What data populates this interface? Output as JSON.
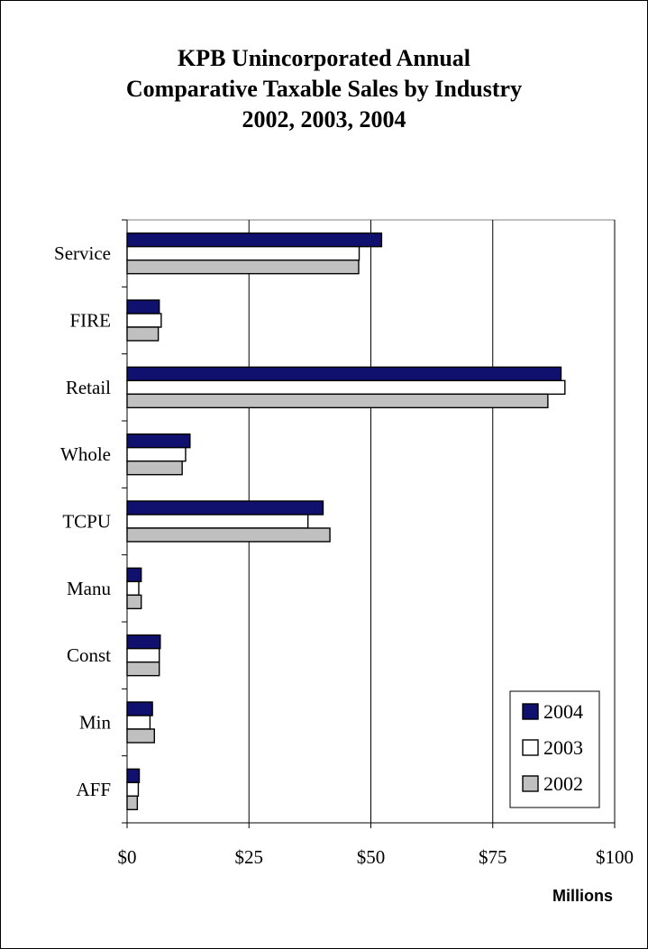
{
  "chart_data": {
    "type": "bar",
    "orientation": "horizontal",
    "title_lines": [
      "KPB Unincorporated Annual",
      "Comparative Taxable Sales by Industry",
      "2002, 2003, 2004"
    ],
    "categories": [
      "Service",
      "FIRE",
      "Retail",
      "Whole",
      "TCPU",
      "Manu",
      "Const",
      "Min",
      "AFF"
    ],
    "series": [
      {
        "name": "2004",
        "color": "#10106e",
        "values": [
          52.2,
          6.6,
          89.0,
          12.9,
          40.2,
          2.9,
          6.8,
          5.2,
          2.5
        ]
      },
      {
        "name": "2003",
        "color": "#ffffff",
        "values": [
          47.6,
          7.0,
          89.8,
          12.0,
          37.1,
          2.4,
          6.6,
          4.7,
          2.3
        ]
      },
      {
        "name": "2002",
        "color": "#c0c0c0",
        "values": [
          47.5,
          6.4,
          86.3,
          11.3,
          41.6,
          2.9,
          6.6,
          5.6,
          2.1
        ]
      }
    ],
    "x_ticks": [
      "$0",
      "$25",
      "$50",
      "$75",
      "$100"
    ],
    "xlim": [
      0,
      100
    ],
    "xlabel": "Millions",
    "ylabel": "",
    "grid": "vertical major",
    "legend_position": "bottom-right"
  }
}
